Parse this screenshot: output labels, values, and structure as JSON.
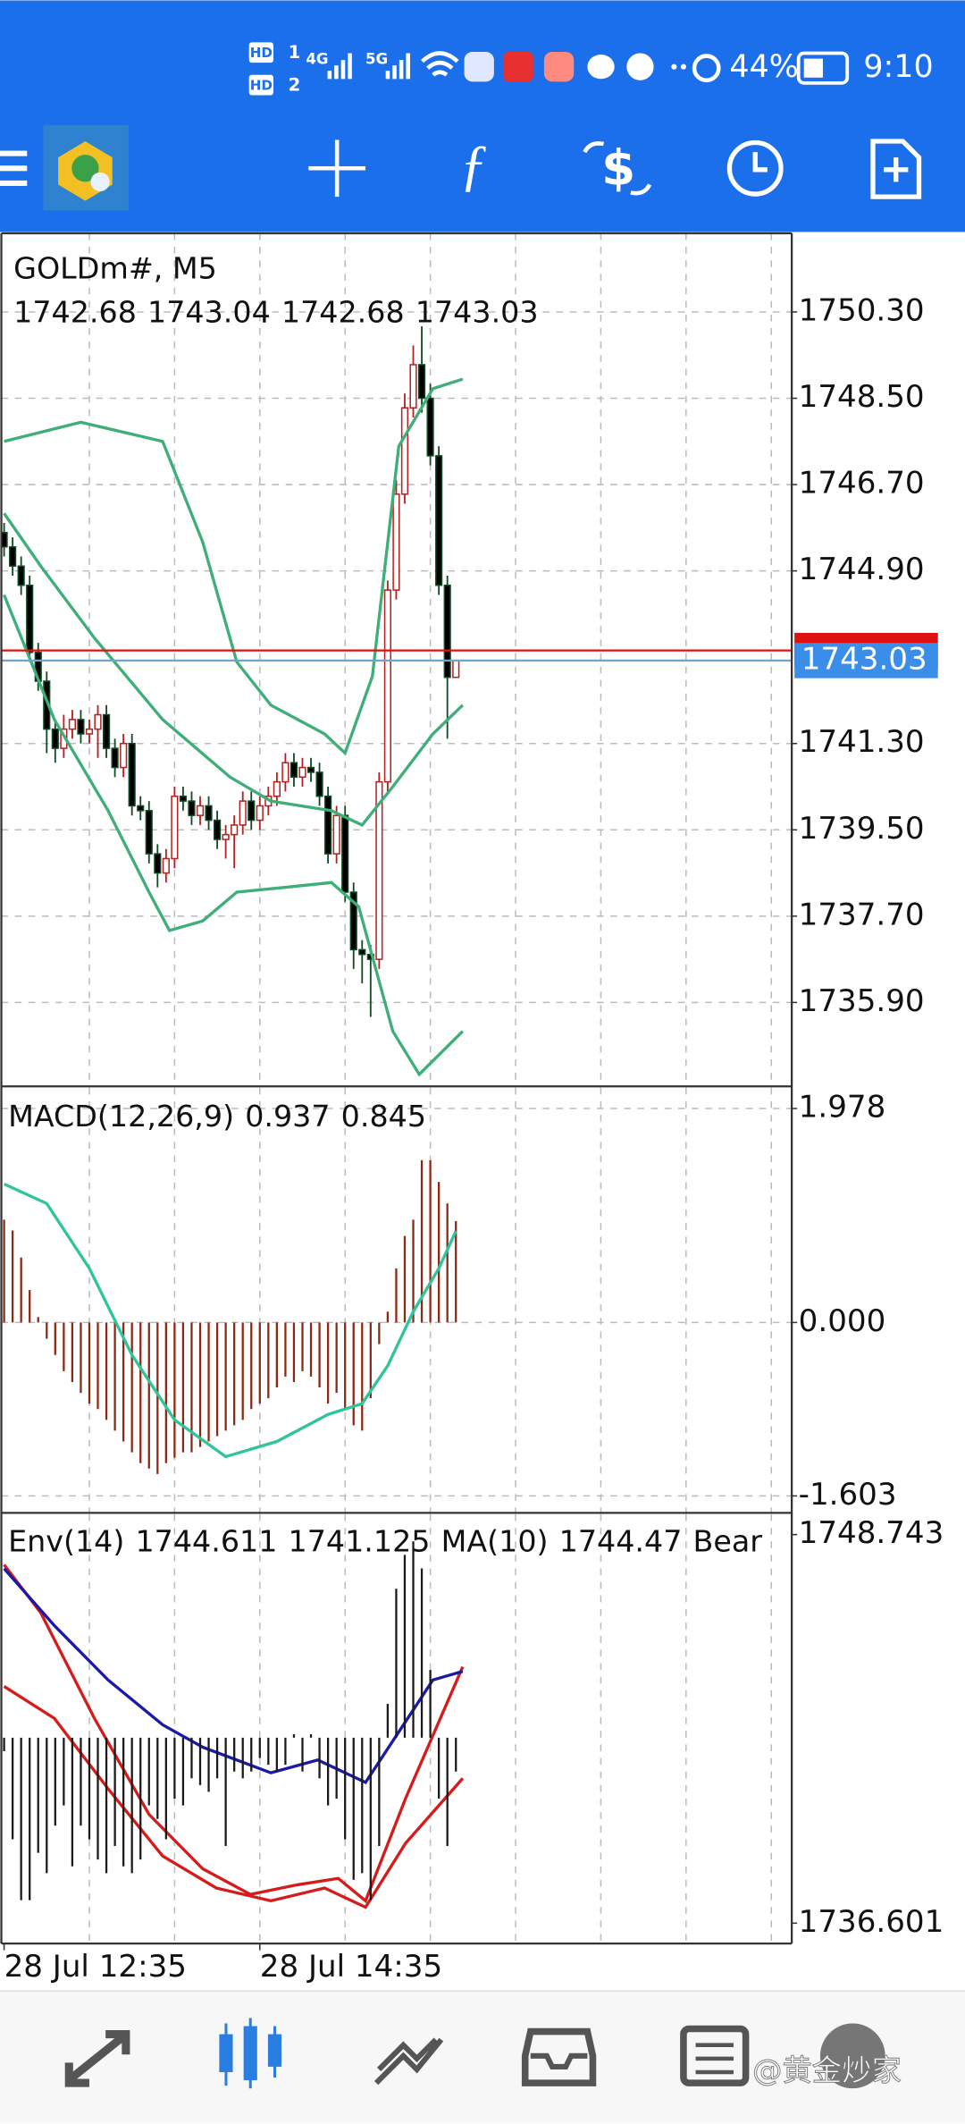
{
  "status_bar": {
    "hd1": "HD",
    "sim1": "1",
    "hd2": "HD",
    "sim2": "2",
    "net1": "4G",
    "net2": "5G",
    "battery": "44%",
    "time": "9:10"
  },
  "watermark": "@黄金炒家",
  "chart_data": [
    {
      "type": "candlestick",
      "title": "GOLDm#, M5",
      "xlim": [
        -0.48,
        92.4
      ],
      "xgrid": [
        10,
        20,
        30,
        40,
        50,
        60,
        70,
        80,
        90
      ],
      "ylim": [
        1734.15,
        1751.94
      ],
      "yticks": [
        {
          "value": 1750.3,
          "label": "1750.30"
        },
        {
          "value": 1748.5,
          "label": "1748.50"
        },
        {
          "value": 1746.7,
          "label": "1746.70"
        },
        {
          "value": 1744.9,
          "label": "1744.90"
        },
        {
          "value": 1741.3,
          "label": "1741.30"
        },
        {
          "value": 1739.5,
          "label": "1739.50"
        },
        {
          "value": 1737.7,
          "label": "1737.70"
        },
        {
          "value": 1735.9,
          "label": "1735.90"
        }
      ],
      "grid": true,
      "ask": 1743.24,
      "ask_color": "#e01010",
      "bid_color": "#3a8ee8",
      "series": [
        {
          "type": "candlestick",
          "up_color": "#b52020",
          "down_color": "#124a24",
          "up_fill": "#ffffff",
          "down_fill": "#000000",
          "open": [
            1745.7,
            1745.4,
            1745.0,
            1744.6,
            1743.2,
            1742.6,
            1741.6,
            1741.2,
            1741.6,
            1741.8,
            1741.5,
            1741.6,
            1741.9,
            1741.2,
            1740.8,
            1741.3,
            1740.0,
            1739.9,
            1739.0,
            1738.6,
            1738.9,
            1740.2,
            1740.1,
            1739.8,
            1740.0,
            1739.7,
            1739.3,
            1739.4,
            1739.6,
            1740.1,
            1739.7,
            1740.0,
            1740.2,
            1740.5,
            1740.9,
            1740.6,
            1740.8,
            1740.7,
            1740.2,
            1739.0,
            1739.8,
            1738.2,
            1737.0,
            1736.9,
            1736.8,
            1740.5,
            1744.5,
            1746.5,
            1748.3,
            1749.2,
            1748.5,
            1747.3,
            1744.6,
            1742.68
          ],
          "high": [
            1745.9,
            1745.6,
            1745.2,
            1744.8,
            1743.4,
            1742.8,
            1741.8,
            1741.9,
            1742.0,
            1742.0,
            1741.8,
            1742.1,
            1742.1,
            1741.4,
            1741.5,
            1741.5,
            1740.2,
            1740.1,
            1739.2,
            1739.1,
            1740.4,
            1740.4,
            1740.3,
            1740.2,
            1740.2,
            1739.9,
            1739.6,
            1739.8,
            1740.3,
            1740.3,
            1740.2,
            1740.4,
            1740.7,
            1741.1,
            1741.1,
            1741.0,
            1741.0,
            1740.9,
            1740.4,
            1740.0,
            1740.0,
            1738.4,
            1737.2,
            1737.1,
            1740.7,
            1744.7,
            1746.8,
            1748.6,
            1749.6,
            1750.0,
            1748.8,
            1747.5,
            1744.8,
            1743.04
          ],
          "low": [
            1745.2,
            1744.8,
            1744.4,
            1743.0,
            1742.4,
            1741.1,
            1740.9,
            1741.0,
            1741.4,
            1741.3,
            1741.3,
            1741.0,
            1741.0,
            1740.6,
            1740.6,
            1739.8,
            1739.7,
            1738.8,
            1738.3,
            1738.4,
            1738.7,
            1739.9,
            1739.6,
            1739.6,
            1739.5,
            1739.1,
            1738.9,
            1738.7,
            1739.4,
            1739.5,
            1739.5,
            1739.8,
            1740.0,
            1740.3,
            1740.4,
            1740.4,
            1740.5,
            1740.0,
            1738.8,
            1738.8,
            1738.0,
            1736.6,
            1736.3,
            1735.6,
            1736.6,
            1740.3,
            1744.3,
            1746.3,
            1748.1,
            1748.2,
            1747.1,
            1744.4,
            1741.4,
            1742.68
          ],
          "close": [
            1745.4,
            1745.0,
            1744.6,
            1743.2,
            1742.6,
            1741.6,
            1741.2,
            1741.6,
            1741.8,
            1741.5,
            1741.6,
            1741.9,
            1741.2,
            1740.8,
            1741.3,
            1740.0,
            1739.9,
            1739.0,
            1738.6,
            1738.9,
            1740.2,
            1740.1,
            1739.8,
            1740.0,
            1739.7,
            1739.3,
            1739.4,
            1739.6,
            1740.1,
            1739.7,
            1740.0,
            1740.2,
            1740.5,
            1740.9,
            1740.6,
            1740.8,
            1740.7,
            1740.2,
            1739.0,
            1739.8,
            1738.2,
            1737.0,
            1736.9,
            1736.8,
            1740.5,
            1744.5,
            1746.5,
            1748.3,
            1749.2,
            1748.5,
            1747.3,
            1744.6,
            1742.68,
            1743.03
          ]
        },
        {
          "type": "line",
          "color": "#3fae78",
          "x": [
            0,
            9,
            18.6,
            23.3,
            27.3,
            31.3,
            37.6,
            40,
            43.2,
            46.3,
            50.3,
            53.8
          ],
          "values": [
            1747.6,
            1748.0,
            1747.6,
            1745.5,
            1743.0,
            1742.1,
            1741.5,
            1741.1,
            1742.7,
            1747.5,
            1748.7,
            1748.9
          ]
        },
        {
          "type": "line",
          "color": "#3fae78",
          "x": [
            0,
            4.3,
            10.6,
            18.6,
            26.5,
            31.3,
            38.4,
            42,
            45.6,
            50.3,
            53.8
          ],
          "values": [
            1746.1,
            1745.0,
            1743.5,
            1741.8,
            1740.6,
            1740.1,
            1739.9,
            1739.6,
            1740.4,
            1741.5,
            1742.1
          ]
        },
        {
          "type": "line",
          "color": "#3fae78",
          "x": [
            0,
            5.9,
            12.2,
            17,
            19.4,
            23.3,
            27.3,
            32.9,
            38.4,
            41.6,
            45.6,
            48.7,
            53.8
          ],
          "values": [
            1744.4,
            1741.8,
            1739.9,
            1738.2,
            1737.4,
            1737.6,
            1738.2,
            1738.3,
            1738.4,
            1737.9,
            1735.3,
            1734.4,
            1735.3
          ]
        }
      ]
    },
    {
      "type": "bar",
      "title": "MACD(12,26,9)",
      "xlim": [
        -0.48,
        92.4
      ],
      "xgrid": [
        10,
        20,
        30,
        40,
        50,
        60,
        70,
        80,
        90
      ],
      "ylim": [
        -1.76,
        2.17
      ],
      "yticks": [
        1.978,
        {
          "value": 0,
          "label": "0.000"
        },
        -1.603
      ],
      "grid": true,
      "series": [
        {
          "type": "bar",
          "color": "#8b2a14",
          "values": [
            0.95,
            0.85,
            0.6,
            0.3,
            0.05,
            -0.15,
            -0.3,
            -0.45,
            -0.55,
            -0.65,
            -0.75,
            -0.8,
            -0.9,
            -1.0,
            -1.1,
            -1.2,
            -1.3,
            -1.35,
            -1.4,
            -1.3,
            -1.25,
            -1.2,
            -1.2,
            -1.15,
            -1.1,
            -1.05,
            -1.0,
            -0.95,
            -0.9,
            -0.8,
            -0.75,
            -0.7,
            -0.6,
            -0.5,
            -0.55,
            -0.45,
            -0.5,
            -0.6,
            -0.75,
            -0.65,
            -0.8,
            -0.95,
            -1.0,
            -0.7,
            -0.2,
            0.1,
            0.5,
            0.8,
            0.95,
            1.5,
            1.5,
            1.3,
            1.1,
            0.937
          ]
        },
        {
          "type": "line",
          "color": "#2fc49a",
          "x": [
            0,
            5,
            10,
            15,
            20,
            26,
            32,
            38,
            42,
            45,
            48,
            51,
            53
          ],
          "values": [
            1.28,
            1.1,
            0.5,
            -0.3,
            -0.9,
            -1.24,
            -1.1,
            -0.85,
            -0.75,
            -0.4,
            0.1,
            0.5,
            0.845
          ]
        }
      ]
    },
    {
      "type": "line",
      "title": "Env(14)",
      "xlim": [
        -0.48,
        92.4
      ],
      "xgrid": [
        10,
        20,
        30,
        40,
        50,
        60,
        70,
        80,
        90
      ],
      "xticks": [
        {
          "value": 0,
          "label": "28 Jul 12:35"
        },
        {
          "value": 30,
          "label": "28 Jul 14:35"
        }
      ],
      "ylim": [
        1735.966,
        1749.378
      ],
      "yticks": [
        1748.743,
        1736.601
      ],
      "grid": false,
      "y2lim": [
        -3.04,
        3.3
      ],
      "series": [
        {
          "type": "line",
          "color": "#d41c1c",
          "x": [
            0,
            4.3,
            10.6,
            17,
            23.3,
            28.9,
            34.4,
            39.2,
            42.4,
            47.1,
            53.8
          ],
          "values": [
            1747.8,
            1746.3,
            1743.0,
            1740.0,
            1738.3,
            1737.5,
            1737.8,
            1738.0,
            1737.3,
            1740.5,
            1744.611
          ]
        },
        {
          "type": "line",
          "color": "#d41c1c",
          "x": [
            0,
            5.9,
            12.2,
            18.6,
            24.9,
            31.3,
            37.6,
            42.4,
            47.1,
            53.8
          ],
          "values": [
            1744.0,
            1743.0,
            1740.8,
            1738.7,
            1737.7,
            1737.3,
            1737.7,
            1737.1,
            1739.1,
            1741.125
          ]
        },
        {
          "type": "line",
          "name": "MA(10)",
          "color": "#1a1aa6",
          "x": [
            0,
            5.9,
            12.2,
            18.6,
            23.3,
            31.3,
            36.8,
            42.4,
            47.1,
            50.3,
            53.8
          ],
          "values": [
            1747.68,
            1745.9,
            1744.2,
            1742.8,
            1742.1,
            1741.3,
            1741.7,
            1741.0,
            1742.9,
            1744.2,
            1744.47
          ]
        },
        {
          "type": "bar",
          "name": "Bear",
          "axis": "y2",
          "color": "#1a1a1a",
          "values": [
            -0.2,
            -1.5,
            -2.4,
            -2.4,
            -1.7,
            -2.0,
            -1.3,
            -1.0,
            -1.9,
            -1.3,
            -1.5,
            -1.8,
            -2.0,
            -1.6,
            -1.9,
            -2.0,
            -1.8,
            -1.0,
            -1.2,
            -1.5,
            -0.9,
            -1.0,
            -0.6,
            -0.7,
            -0.8,
            -0.6,
            -1.6,
            -0.5,
            -0.6,
            -0.5,
            -0.3,
            -0.4,
            -0.5,
            -0.4,
            0.05,
            -0.5,
            0.05,
            -0.6,
            -1.0,
            -0.9,
            -1.5,
            -2.1,
            -2.0,
            -2.4,
            -1.6,
            0.5,
            2.2,
            2.7,
            2.9,
            2.5,
            1.0,
            -0.9,
            -1.6,
            -0.5
          ]
        }
      ]
    }
  ]
}
